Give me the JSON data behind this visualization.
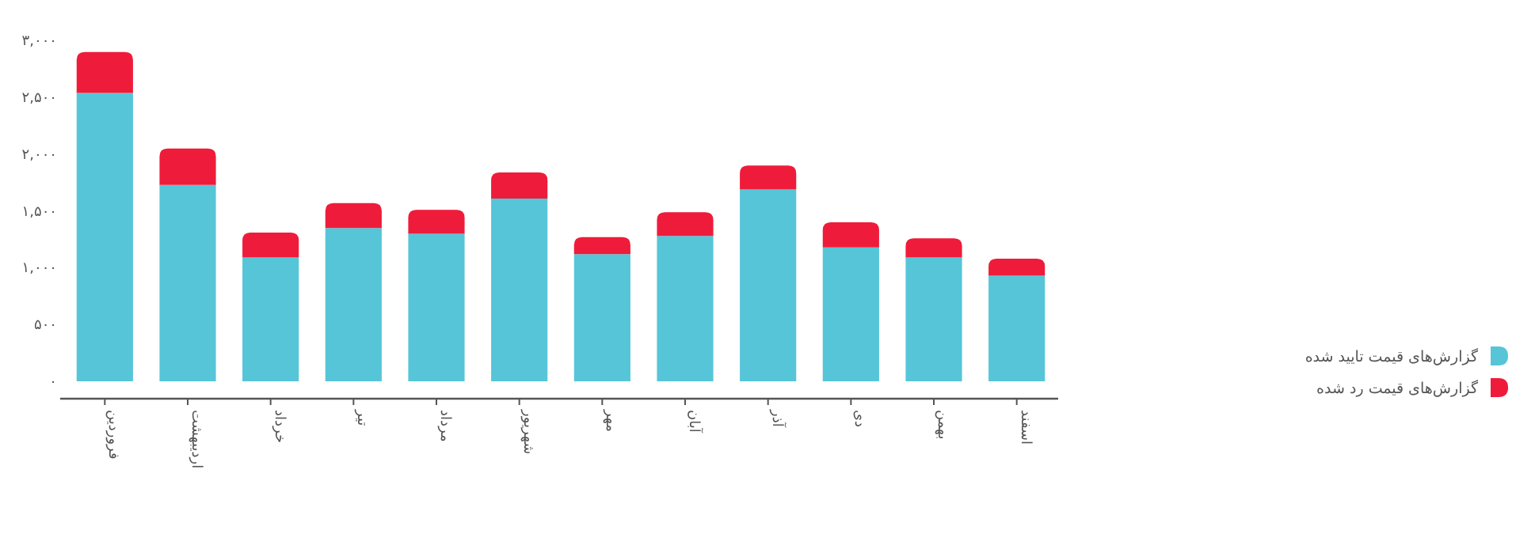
{
  "chart_data": {
    "type": "bar",
    "stacked": true,
    "categories": [
      "فروردین",
      "اردیبهشت",
      "خرداد",
      "تیر",
      "مرداد",
      "شهریور",
      "مهر",
      "آبان",
      "آذر",
      "دی",
      "بهمن",
      "اسفند"
    ],
    "series": [
      {
        "name": "گزارش‌های قیمت تایید شده",
        "color": "#56c5d8",
        "values": [
          2540,
          1730,
          1090,
          1350,
          1300,
          1610,
          1120,
          1280,
          1690,
          1180,
          1090,
          930
        ]
      },
      {
        "name": "گزارش‌های قیمت رد شده",
        "color": "#ee1c3a",
        "values": [
          360,
          320,
          220,
          220,
          210,
          230,
          150,
          210,
          210,
          220,
          170,
          150
        ]
      }
    ],
    "ylim": [
      0,
      3000
    ],
    "yticks": [
      {
        "value": 0,
        "label": "۰"
      },
      {
        "value": 500,
        "label": "۵۰۰"
      },
      {
        "value": 1000,
        "label": "۱,۰۰۰"
      },
      {
        "value": 1500,
        "label": "۱,۵۰۰"
      },
      {
        "value": 2000,
        "label": "۲,۰۰۰"
      },
      {
        "value": 2500,
        "label": "۲,۵۰۰"
      },
      {
        "value": 3000,
        "label": "۳,۰۰۰"
      }
    ],
    "legend": "right",
    "grid": false
  }
}
